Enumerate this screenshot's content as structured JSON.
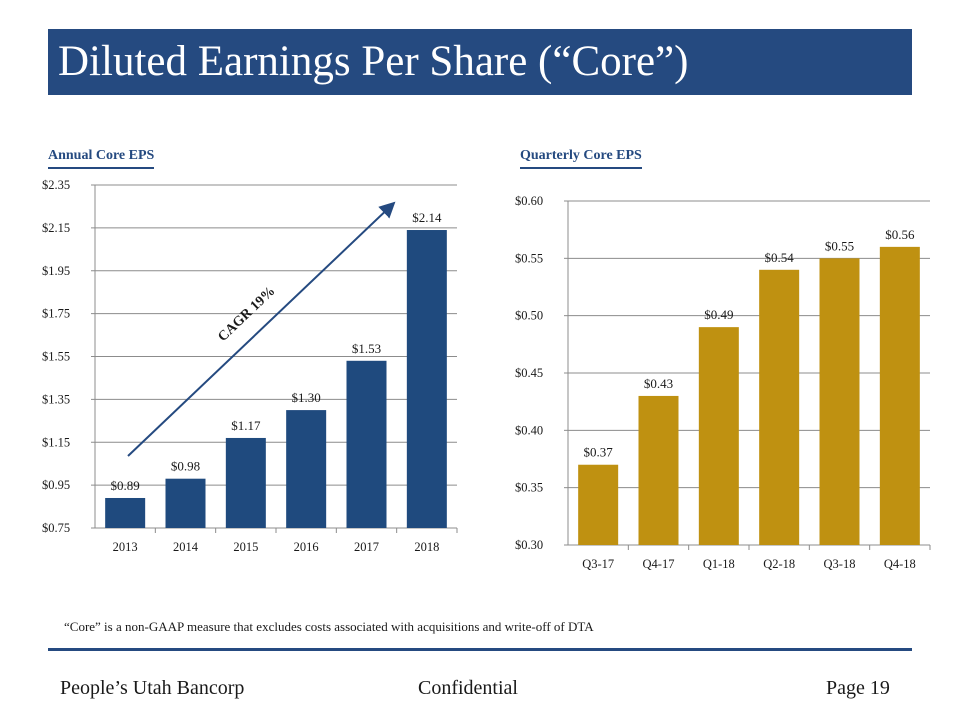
{
  "title": "Diluted Earnings Per Share (“Core”)",
  "colors": {
    "brand": "#254a80",
    "annual_bar": "#1f4a7e",
    "quarterly_bar": "#bf9111"
  },
  "chart_data": [
    {
      "type": "bar",
      "title": "Annual  Core EPS",
      "categories": [
        "2013",
        "2014",
        "2015",
        "2016",
        "2017",
        "2018"
      ],
      "values": [
        0.89,
        0.98,
        1.17,
        1.3,
        1.53,
        2.14
      ],
      "value_labels": [
        "$0.89",
        "$0.98",
        "$1.17",
        "$1.30",
        "$1.53",
        "$2.14"
      ],
      "ylim": [
        0.75,
        2.35
      ],
      "yticks": [
        0.75,
        0.95,
        1.15,
        1.35,
        1.55,
        1.75,
        1.95,
        2.15,
        2.35
      ],
      "ytick_labels": [
        "$0.75",
        "$0.95",
        "$1.15",
        "$1.35",
        "$1.55",
        "$1.75",
        "$1.95",
        "$2.15",
        "$2.35"
      ],
      "grid": true,
      "annotation": "CAGR 19%"
    },
    {
      "type": "bar",
      "title": "Quarterly Core EPS",
      "categories": [
        "Q3-17",
        "Q4-17",
        "Q1-18",
        "Q2-18",
        "Q3-18",
        "Q4-18"
      ],
      "values": [
        0.37,
        0.43,
        0.49,
        0.54,
        0.55,
        0.56
      ],
      "value_labels": [
        "$0.37",
        "$0.43",
        "$0.49",
        "$0.54",
        "$0.55",
        "$0.56"
      ],
      "ylim": [
        0.3,
        0.6
      ],
      "yticks": [
        0.3,
        0.35,
        0.4,
        0.45,
        0.5,
        0.55,
        0.6
      ],
      "ytick_labels": [
        "$0.30",
        "$0.35",
        "$0.40",
        "$0.45",
        "$0.50",
        "$0.55",
        "$0.60"
      ],
      "grid": true
    }
  ],
  "footnote": "“Core” is a non-GAAP measure that excludes costs associated with acquisitions and write-off of DTA",
  "footer": {
    "left": "People’s Utah Bancorp",
    "center": "Confidential",
    "right": "Page 19"
  }
}
